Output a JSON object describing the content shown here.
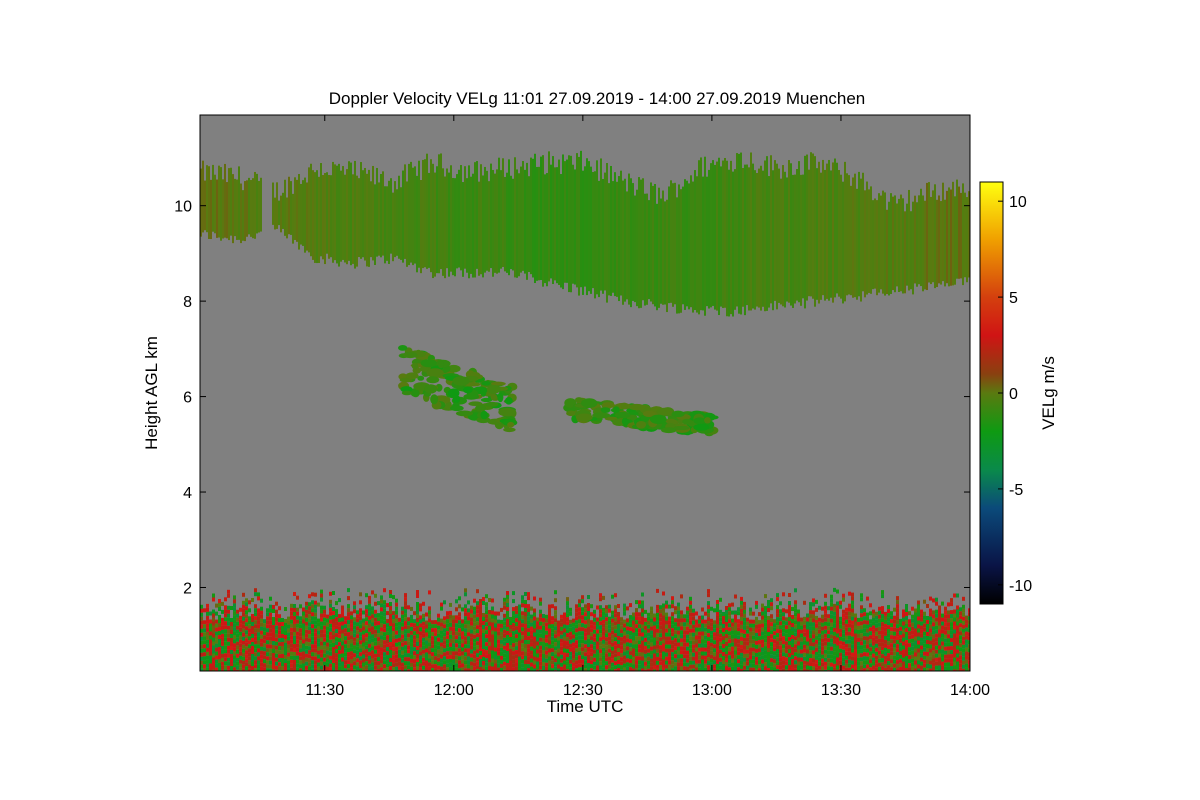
{
  "chart_data": {
    "type": "heatmap",
    "title": "Doppler Velocity VELg   11:01 27.09.2019 - 14:00 27.09.2019 Muenchen",
    "xlabel": "Time UTC",
    "ylabel": "Height AGL km",
    "colorbar_label": "VELg m/s",
    "x_unit": "minutes UTC",
    "xlim": [
      661,
      840
    ],
    "ylim": [
      0.25,
      11.9
    ],
    "x_ticks": [
      {
        "value": 690,
        "label": "11:30"
      },
      {
        "value": 720,
        "label": "12:00"
      },
      {
        "value": 750,
        "label": "12:30"
      },
      {
        "value": 780,
        "label": "13:00"
      },
      {
        "value": 810,
        "label": "13:30"
      },
      {
        "value": 840,
        "label": "14:00"
      }
    ],
    "y_ticks": [
      {
        "value": 2,
        "label": "2"
      },
      {
        "value": 4,
        "label": "4"
      },
      {
        "value": 6,
        "label": "6"
      },
      {
        "value": 8,
        "label": "8"
      },
      {
        "value": 10,
        "label": "10"
      }
    ],
    "colorbar": {
      "range": [
        -11,
        11
      ],
      "ticks": [
        {
          "value": 10,
          "label": "10"
        },
        {
          "value": 5,
          "label": "5"
        },
        {
          "value": 0,
          "label": "0"
        },
        {
          "value": -5,
          "label": "-5"
        },
        {
          "value": -10,
          "label": "-10"
        }
      ],
      "stops": [
        {
          "value": -11,
          "color": "#000000"
        },
        {
          "value": -9,
          "color": "#0a1446"
        },
        {
          "value": -6,
          "color": "#0b4a7a"
        },
        {
          "value": -4,
          "color": "#0a8a4a"
        },
        {
          "value": -2,
          "color": "#0e9a12"
        },
        {
          "value": 0,
          "color": "#5a7a10"
        },
        {
          "value": 1,
          "color": "#8a4010"
        },
        {
          "value": 3,
          "color": "#d01414"
        },
        {
          "value": 5,
          "color": "#d4400e"
        },
        {
          "value": 8,
          "color": "#f0a000"
        },
        {
          "value": 11,
          "color": "#ffff10"
        }
      ]
    },
    "colors": {
      "background_no_signal": "#808080",
      "frame": "#000000"
    },
    "features": [
      {
        "name": "cirrus-layer",
        "velocity_range": [
          -2,
          0.5
        ],
        "time_start": 661,
        "time_end": 840,
        "top_km": [
          10.7,
          10.6,
          10.3,
          10.8,
          10.7,
          10.5,
          10.9,
          10.7,
          10.8,
          10.9,
          10.9,
          10.5,
          10.2,
          10.8,
          11.0,
          10.8,
          10.9,
          10.6,
          10.0,
          10.3,
          10.4
        ],
        "bottom_km": [
          9.4,
          9.3,
          9.5,
          8.9,
          8.8,
          8.9,
          8.6,
          8.6,
          8.6,
          8.4,
          8.2,
          8.0,
          7.9,
          7.8,
          7.8,
          7.9,
          8.0,
          8.1,
          8.2,
          8.3,
          8.4
        ]
      },
      {
        "name": "mid-cloud-1",
        "velocity_range": [
          -2,
          0
        ],
        "time_start": 708,
        "time_end": 734,
        "top_km": 6.9,
        "bottom_km": 5.5
      },
      {
        "name": "mid-cloud-2",
        "velocity_range": [
          -2,
          0
        ],
        "time_start": 747,
        "time_end": 780,
        "top_km": 5.9,
        "bottom_km": 5.3
      },
      {
        "name": "boundary-layer",
        "velocity_range": [
          -4,
          4
        ],
        "time_start": 661,
        "time_end": 840,
        "top_km": 2.0,
        "bottom_km": 0.25
      }
    ]
  }
}
